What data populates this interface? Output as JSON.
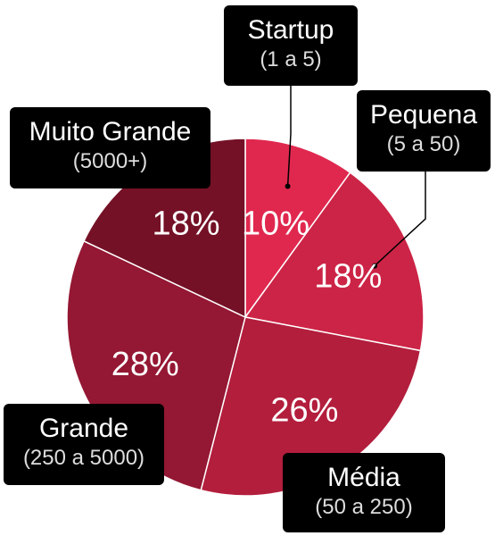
{
  "chart_data": {
    "type": "pie",
    "title": "",
    "slices": [
      {
        "label": "Startup",
        "range": "(1 a 5)",
        "value": 10,
        "value_label": "10%",
        "color": "#E0284F"
      },
      {
        "label": "Pequena",
        "range": "(5 a 50)",
        "value": 18,
        "value_label": "18%",
        "color": "#CC2446"
      },
      {
        "label": "Média",
        "range": "(50 a 250)",
        "value": 26,
        "value_label": "26%",
        "color": "#B31E3D"
      },
      {
        "label": "Grande",
        "range": "(250 a 5000)",
        "value": 28,
        "value_label": "28%",
        "color": "#941733"
      },
      {
        "label": "Muito Grande",
        "range": "(5000+)",
        "value": 18,
        "value_label": "18%",
        "color": "#741126"
      }
    ],
    "start_angle_deg": 0,
    "direction": "clockwise",
    "legend": "callout-labels"
  }
}
